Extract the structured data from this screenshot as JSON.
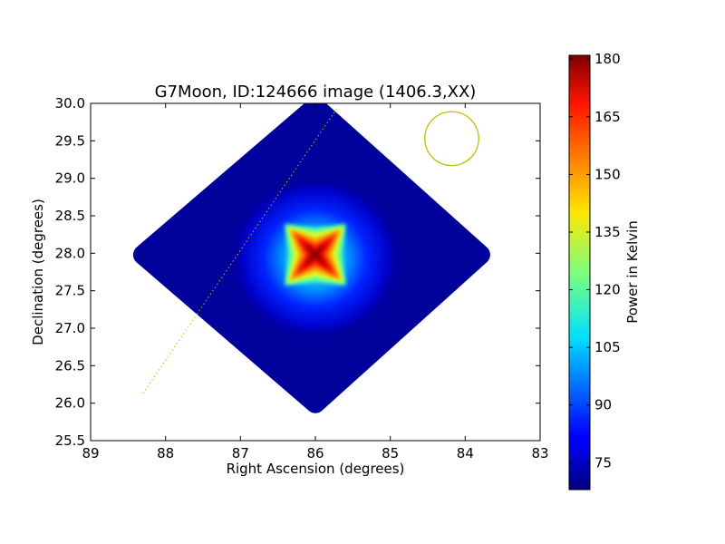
{
  "chart_data": {
    "type": "heatmap",
    "title": "G7Moon, ID:124666 image (1406.3,XX)",
    "xlabel": "Right Ascension (degrees)",
    "ylabel": "Declination (degrees)",
    "xlim": [
      89,
      83
    ],
    "ylim": [
      25.5,
      30.0
    ],
    "x_ticks": [
      89,
      88,
      87,
      86,
      85,
      84,
      83
    ],
    "x_tick_labels": [
      "89",
      "88",
      "87",
      "86",
      "85",
      "84",
      "83"
    ],
    "y_ticks": [
      25.5,
      26.0,
      26.5,
      27.0,
      27.5,
      28.0,
      28.5,
      29.0,
      29.5,
      30.0
    ],
    "y_tick_labels": [
      "25.5",
      "26.0",
      "26.5",
      "27.0",
      "27.5",
      "28.0",
      "28.5",
      "29.0",
      "29.5",
      "30.0"
    ],
    "colorbar": {
      "label": "Power in Kelvin",
      "range": [
        68,
        181
      ],
      "ticks": [
        75,
        90,
        105,
        120,
        135,
        150,
        165,
        180
      ],
      "tick_labels": [
        "75",
        "90",
        "105",
        "120",
        "135",
        "150",
        "165",
        "180"
      ],
      "colormap": "jet"
    },
    "map_footprint": {
      "shape": "diamond",
      "center": [
        86.0,
        27.98
      ],
      "vertices_ra_dec": [
        [
          86.0,
          29.95
        ],
        [
          83.8,
          27.98
        ],
        [
          86.0,
          26.0
        ],
        [
          88.3,
          27.98
        ]
      ],
      "background_value": 71
    },
    "peak": {
      "ra": 86.0,
      "dec": 27.98,
      "value": 180
    },
    "beam_circle": {
      "ra": 84.18,
      "dec": 29.53,
      "radius_deg": 0.36,
      "color": "#bfbf00"
    },
    "dotted_line": {
      "from": [
        88.3,
        26.13
      ],
      "to": [
        85.7,
        29.95
      ],
      "color": "#bfbf00"
    }
  }
}
